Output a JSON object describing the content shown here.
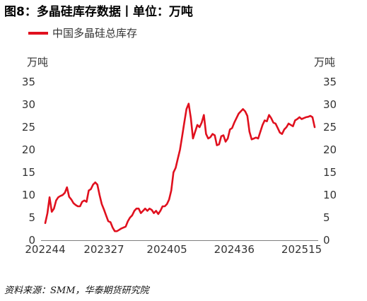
{
  "title": "图8：多晶硅库存数据丨单位：万吨",
  "source": "资料来源：SMM，华泰期货研究院",
  "legend_label": "中国多晶硅总库存",
  "unit_left": "万吨",
  "unit_right": "万吨",
  "colors": {
    "series": "#e0101e",
    "axis": "#7f7f7f"
  },
  "chart_data": {
    "type": "line",
    "title": "图8：多晶硅库存数据丨单位：万吨",
    "ylabel": "万吨",
    "ylim": [
      0,
      35
    ],
    "yticks": [
      0,
      5,
      10,
      15,
      20,
      25,
      30,
      35
    ],
    "grid": false,
    "legend_position": "top-left",
    "x_tick_labels": [
      "202244",
      "202327",
      "202405",
      "202436",
      "202515"
    ],
    "x_tick_index": [
      0,
      27,
      56,
      87,
      118
    ],
    "series": [
      {
        "name": "中国多晶硅总库存",
        "values": [
          3.8,
          6.0,
          9.5,
          6.3,
          7.0,
          8.8,
          9.5,
          9.8,
          10.0,
          10.5,
          11.7,
          9.6,
          9.0,
          8.2,
          7.8,
          7.5,
          7.5,
          8.5,
          8.8,
          8.5,
          11.0,
          11.3,
          12.3,
          12.8,
          12.3,
          10.0,
          8.0,
          6.8,
          5.5,
          4.2,
          4.0,
          2.8,
          2.0,
          2.0,
          2.3,
          2.6,
          2.8,
          3.0,
          4.2,
          5.0,
          5.5,
          6.5,
          7.0,
          7.0,
          6.0,
          6.5,
          7.0,
          6.5,
          7.0,
          6.7,
          6.0,
          6.5,
          5.8,
          6.5,
          7.5,
          7.5,
          8.0,
          9.0,
          11.0,
          15.0,
          16.0,
          18.0,
          20.0,
          23.0,
          26.0,
          29.0,
          30.2,
          27.0,
          22.5,
          24.0,
          25.5,
          25.0,
          26.0,
          27.7,
          23.5,
          22.5,
          22.8,
          23.5,
          23.2,
          21.0,
          21.2,
          23.0,
          23.2,
          21.8,
          22.5,
          24.5,
          24.8,
          26.0,
          27.0,
          28.0,
          28.5,
          29.0,
          28.5,
          27.5,
          24.0,
          22.3,
          22.5,
          22.7,
          22.5,
          24.0,
          25.5,
          26.5,
          26.3,
          27.7,
          27.0,
          26.0,
          25.8,
          24.8,
          23.8,
          23.5,
          24.5,
          25.0,
          25.8,
          25.5,
          25.2,
          26.5,
          26.8,
          27.2,
          26.8,
          27.0,
          27.2,
          27.3,
          27.5,
          27.2,
          25.0
        ]
      }
    ]
  }
}
